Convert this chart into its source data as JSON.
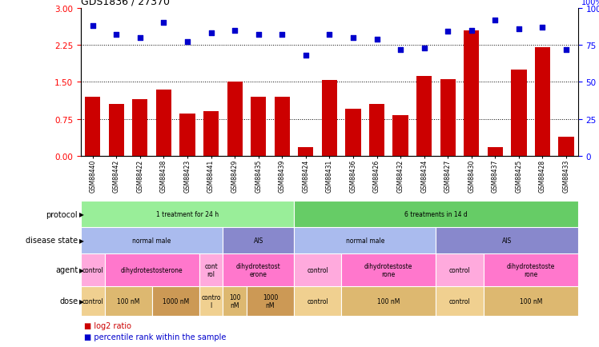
{
  "title": "GDS1836 / 27370",
  "samples": [
    "GSM88440",
    "GSM88442",
    "GSM88422",
    "GSM88438",
    "GSM88423",
    "GSM88441",
    "GSM88429",
    "GSM88435",
    "GSM88439",
    "GSM88424",
    "GSM88431",
    "GSM88436",
    "GSM88426",
    "GSM88432",
    "GSM88434",
    "GSM88427",
    "GSM88430",
    "GSM88437",
    "GSM88425",
    "GSM88428",
    "GSM88433"
  ],
  "log2_ratio": [
    1.2,
    1.05,
    1.15,
    1.35,
    0.85,
    0.9,
    1.5,
    1.2,
    1.2,
    0.18,
    1.53,
    0.95,
    1.05,
    0.82,
    1.62,
    1.55,
    2.55,
    0.18,
    1.75,
    2.2,
    0.38
  ],
  "percentile_rank": [
    88,
    82,
    80,
    90,
    77,
    83,
    85,
    82,
    82,
    68,
    82,
    80,
    79,
    72,
    73,
    84,
    85,
    92,
    86,
    87,
    72
  ],
  "bar_color": "#cc0000",
  "scatter_color": "#0000cc",
  "left_yticks": [
    0,
    0.75,
    1.5,
    2.25,
    3
  ],
  "right_yticks": [
    0,
    25,
    50,
    75,
    100
  ],
  "protocol_groups": [
    {
      "text": "1 treatment for 24 h",
      "start": 0,
      "end": 9,
      "color": "#99ee99"
    },
    {
      "text": "6 treatments in 14 d",
      "start": 9,
      "end": 21,
      "color": "#66cc66"
    }
  ],
  "disease_state_groups": [
    {
      "text": "normal male",
      "start": 0,
      "end": 6,
      "color": "#aabbee"
    },
    {
      "text": "AIS",
      "start": 6,
      "end": 9,
      "color": "#8888cc"
    },
    {
      "text": "normal male",
      "start": 9,
      "end": 15,
      "color": "#aabbee"
    },
    {
      "text": "AIS",
      "start": 15,
      "end": 21,
      "color": "#8888cc"
    }
  ],
  "agent_groups": [
    {
      "text": "control",
      "start": 0,
      "end": 1,
      "color": "#ffaadd"
    },
    {
      "text": "dihydrotestosterone",
      "start": 1,
      "end": 5,
      "color": "#ff77cc"
    },
    {
      "text": "cont\nrol",
      "start": 5,
      "end": 6,
      "color": "#ffaadd"
    },
    {
      "text": "dihydrotestost\nerone",
      "start": 6,
      "end": 9,
      "color": "#ff77cc"
    },
    {
      "text": "control",
      "start": 9,
      "end": 11,
      "color": "#ffaadd"
    },
    {
      "text": "dihydrotestoste\nrone",
      "start": 11,
      "end": 15,
      "color": "#ff77cc"
    },
    {
      "text": "control",
      "start": 15,
      "end": 17,
      "color": "#ffaadd"
    },
    {
      "text": "dihydrotestoste\nrone",
      "start": 17,
      "end": 21,
      "color": "#ff77cc"
    }
  ],
  "dose_groups": [
    {
      "text": "control",
      "start": 0,
      "end": 1,
      "color": "#f0d090"
    },
    {
      "text": "100 nM",
      "start": 1,
      "end": 3,
      "color": "#ddb870"
    },
    {
      "text": "1000 nM",
      "start": 3,
      "end": 5,
      "color": "#cc9955"
    },
    {
      "text": "contro\nl",
      "start": 5,
      "end": 6,
      "color": "#f0d090"
    },
    {
      "text": "100\nnM",
      "start": 6,
      "end": 7,
      "color": "#ddb870"
    },
    {
      "text": "1000\nnM",
      "start": 7,
      "end": 9,
      "color": "#cc9955"
    },
    {
      "text": "control",
      "start": 9,
      "end": 11,
      "color": "#f0d090"
    },
    {
      "text": "100 nM",
      "start": 11,
      "end": 15,
      "color": "#ddb870"
    },
    {
      "text": "control",
      "start": 15,
      "end": 17,
      "color": "#f0d090"
    },
    {
      "text": "100 nM",
      "start": 17,
      "end": 21,
      "color": "#ddb870"
    }
  ],
  "row_labels": [
    "protocol",
    "disease state",
    "agent",
    "dose"
  ],
  "legend_items": [
    {
      "color": "#cc0000",
      "label": "log2 ratio"
    },
    {
      "color": "#0000cc",
      "label": "percentile rank within the sample"
    }
  ]
}
